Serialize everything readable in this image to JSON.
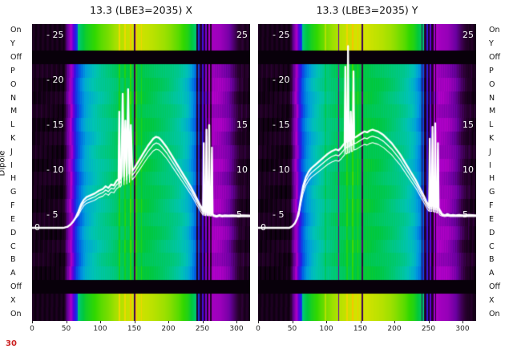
{
  "y_axis_title": "Dipole",
  "frame_counter": {
    "text": "30",
    "color": "#cc2222"
  },
  "dipole_labels": [
    "On",
    "Y",
    "Off",
    "P",
    "O",
    "N",
    "M",
    "L",
    "K",
    "J",
    "I",
    "H",
    "G",
    "F",
    "E",
    "D",
    "C",
    "B",
    "A",
    "Off",
    "X",
    "On"
  ],
  "overlay_y_ticks": [
    {
      "v": 25,
      "label": "- 25"
    },
    {
      "v": 20,
      "label": "- 20"
    },
    {
      "v": 15,
      "label": "- 15"
    },
    {
      "v": 10,
      "label": "- 10"
    },
    {
      "v": 5,
      "label": "- 5"
    },
    {
      "v": 0,
      "label": "0"
    }
  ],
  "mirror_y_ticks": [
    {
      "v": 25,
      "label": "25"
    },
    {
      "v": 15,
      "label": "15"
    },
    {
      "v": 10,
      "label": "10"
    },
    {
      "v": 5,
      "label": "5"
    }
  ],
  "x_ticks": [
    {
      "v": 0,
      "label": "0"
    },
    {
      "v": 50,
      "label": "50"
    },
    {
      "v": 100,
      "label": "100"
    },
    {
      "v": 150,
      "label": "150"
    },
    {
      "v": 200,
      "label": "200"
    },
    {
      "v": 250,
      "label": "250"
    },
    {
      "v": 300,
      "label": "300"
    }
  ],
  "colormap": [
    [
      0.0,
      "#000000"
    ],
    [
      0.06,
      "#2a0030"
    ],
    [
      0.12,
      "#6a00a0"
    ],
    [
      0.17,
      "#b400c8"
    ],
    [
      0.22,
      "#5a00dc"
    ],
    [
      0.27,
      "#2222e4"
    ],
    [
      0.32,
      "#0064e4"
    ],
    [
      0.37,
      "#00a0dc"
    ],
    [
      0.42,
      "#00c4b4"
    ],
    [
      0.47,
      "#00c87a"
    ],
    [
      0.52,
      "#00c83e"
    ],
    [
      0.58,
      "#32d800"
    ],
    [
      0.64,
      "#a0e000"
    ],
    [
      0.7,
      "#e8e400"
    ],
    [
      0.76,
      "#ffb400"
    ],
    [
      0.82,
      "#ff5000"
    ],
    [
      0.88,
      "#e00000"
    ],
    [
      1.0,
      "#ffffff"
    ]
  ],
  "chart_data": [
    {
      "type": "heatmap",
      "title": "13.3 (LBE3=2035) X",
      "x_range": [
        0,
        320
      ],
      "x_tick_values": [
        0,
        50,
        100,
        150,
        200,
        250,
        300
      ],
      "y_overlay_tick_values": [
        0,
        5,
        10,
        15,
        20,
        25
      ],
      "rows": [
        "On",
        "Y",
        "Off",
        "P",
        "O",
        "N",
        "M",
        "L",
        "K",
        "J",
        "I",
        "H",
        "G",
        "F",
        "E",
        "D",
        "C",
        "B",
        "A",
        "Off",
        "X",
        "On"
      ],
      "off_rows": [
        2,
        19
      ],
      "bright_rows": [
        0,
        1,
        20,
        21
      ],
      "palette": "spectral-like",
      "value_profile": [
        [
          0,
          0.02
        ],
        [
          46,
          0.02
        ],
        [
          50,
          0.1
        ],
        [
          56,
          0.16
        ],
        [
          60,
          0.22
        ],
        [
          64,
          0.28
        ],
        [
          70,
          0.33
        ],
        [
          78,
          0.38
        ],
        [
          88,
          0.41
        ],
        [
          100,
          0.44
        ],
        [
          112,
          0.46
        ],
        [
          125,
          0.49
        ],
        [
          140,
          0.51
        ],
        [
          155,
          0.52
        ],
        [
          170,
          0.51
        ],
        [
          185,
          0.49
        ],
        [
          200,
          0.47
        ],
        [
          215,
          0.44
        ],
        [
          228,
          0.4
        ],
        [
          238,
          0.33
        ],
        [
          246,
          0.27
        ],
        [
          252,
          0.22
        ],
        [
          258,
          0.18
        ],
        [
          263,
          0.16
        ],
        [
          275,
          0.155
        ],
        [
          288,
          0.13
        ],
        [
          296,
          0.09
        ],
        [
          304,
          0.05
        ],
        [
          312,
          0.03
        ],
        [
          330,
          0.02
        ]
      ],
      "dark_stripes": [
        [
          150,
          2,
          0.08
        ],
        [
          242,
          2,
          0.05
        ],
        [
          247,
          3,
          0.04
        ],
        [
          252,
          2,
          0.06
        ],
        [
          257,
          3,
          0.04
        ],
        [
          262,
          2,
          0.05
        ]
      ],
      "bright_stripes": [
        [
          128,
          2,
          0.06
        ],
        [
          136,
          2,
          0.05
        ],
        [
          144,
          2,
          0.07
        ],
        [
          152,
          2,
          0.05
        ],
        [
          160,
          2,
          0.04
        ]
      ],
      "line_series": {
        "name": "white-trace-x",
        "color": "#ffffff",
        "points": [
          [
            0,
            0
          ],
          [
            46,
            0
          ],
          [
            52,
            0.4
          ],
          [
            56,
            1.2
          ],
          [
            60,
            2.4
          ],
          [
            64,
            4.0
          ],
          [
            68,
            5.4
          ],
          [
            72,
            6.2
          ],
          [
            76,
            6.7
          ],
          [
            80,
            7.0
          ],
          [
            86,
            7.2
          ],
          [
            92,
            7.4
          ],
          [
            98,
            7.7
          ],
          [
            104,
            7.9
          ],
          [
            108,
            8.2
          ],
          [
            112,
            8.0
          ],
          [
            116,
            8.4
          ],
          [
            120,
            8.3
          ],
          [
            124,
            8.8
          ],
          [
            127,
            9.0
          ],
          [
            128,
            16.5
          ],
          [
            129,
            9.0
          ],
          [
            131,
            9.2
          ],
          [
            133,
            18.5
          ],
          [
            135,
            9.3
          ],
          [
            137,
            15.5
          ],
          [
            139,
            9.4
          ],
          [
            141,
            19.0
          ],
          [
            143,
            9.6
          ],
          [
            145,
            15.0
          ],
          [
            147,
            9.9
          ],
          [
            150,
            10.2
          ],
          [
            154,
            10.7
          ],
          [
            158,
            11.2
          ],
          [
            162,
            11.7
          ],
          [
            166,
            12.2
          ],
          [
            170,
            12.7
          ],
          [
            174,
            13.1
          ],
          [
            178,
            13.5
          ],
          [
            182,
            13.7
          ],
          [
            186,
            13.6
          ],
          [
            190,
            13.3
          ],
          [
            194,
            12.9
          ],
          [
            198,
            12.5
          ],
          [
            202,
            12.0
          ],
          [
            206,
            11.5
          ],
          [
            210,
            11.0
          ],
          [
            214,
            10.5
          ],
          [
            218,
            10.0
          ],
          [
            222,
            9.5
          ],
          [
            226,
            9.0
          ],
          [
            230,
            8.5
          ],
          [
            234,
            8.0
          ],
          [
            238,
            7.4
          ],
          [
            242,
            6.8
          ],
          [
            246,
            6.2
          ],
          [
            249,
            5.8
          ],
          [
            251,
            5.5
          ],
          [
            252,
            13.0
          ],
          [
            253,
            5.4
          ],
          [
            255,
            5.3
          ],
          [
            256,
            14.5
          ],
          [
            257,
            5.3
          ],
          [
            259,
            5.2
          ],
          [
            260,
            15.0
          ],
          [
            261,
            5.2
          ],
          [
            263,
            5.1
          ],
          [
            264,
            12.5
          ],
          [
            265,
            5.1
          ],
          [
            267,
            4.9
          ],
          [
            271,
            4.6
          ],
          [
            275,
            5.0
          ],
          [
            279,
            4.7
          ],
          [
            283,
            4.9
          ],
          [
            288,
            4.8
          ],
          [
            294,
            4.9
          ],
          [
            300,
            4.8
          ],
          [
            310,
            4.9
          ],
          [
            320,
            4.8
          ],
          [
            330,
            4.8
          ]
        ]
      }
    },
    {
      "type": "heatmap",
      "title": "13.3 (LBE3=2035) Y",
      "x_range": [
        0,
        320
      ],
      "x_tick_values": [
        0,
        50,
        100,
        150,
        200,
        250,
        300
      ],
      "y_overlay_tick_values": [
        0,
        5,
        10,
        15,
        20,
        25
      ],
      "rows": [
        "On",
        "Y",
        "Off",
        "P",
        "O",
        "N",
        "M",
        "L",
        "K",
        "J",
        "I",
        "H",
        "G",
        "F",
        "E",
        "D",
        "C",
        "B",
        "A",
        "Off",
        "X",
        "On"
      ],
      "off_rows": [
        2,
        19
      ],
      "bright_rows": [
        0,
        1,
        20,
        21
      ],
      "palette": "spectral-like",
      "value_profile": [
        [
          0,
          0.02
        ],
        [
          46,
          0.02
        ],
        [
          50,
          0.1
        ],
        [
          56,
          0.17
        ],
        [
          60,
          0.24
        ],
        [
          64,
          0.3
        ],
        [
          70,
          0.35
        ],
        [
          80,
          0.4
        ],
        [
          92,
          0.44
        ],
        [
          105,
          0.47
        ],
        [
          120,
          0.5
        ],
        [
          140,
          0.52
        ],
        [
          160,
          0.52
        ],
        [
          180,
          0.5
        ],
        [
          200,
          0.47
        ],
        [
          215,
          0.44
        ],
        [
          228,
          0.4
        ],
        [
          238,
          0.34
        ],
        [
          246,
          0.27
        ],
        [
          252,
          0.22
        ],
        [
          258,
          0.18
        ],
        [
          264,
          0.16
        ],
        [
          278,
          0.15
        ],
        [
          290,
          0.12
        ],
        [
          298,
          0.08
        ],
        [
          306,
          0.05
        ],
        [
          312,
          0.03
        ],
        [
          330,
          0.02
        ]
      ],
      "dark_stripes": [
        [
          118,
          1.5,
          0.12
        ],
        [
          152,
          2,
          0.08
        ],
        [
          240,
          2,
          0.06
        ],
        [
          245,
          3,
          0.04
        ],
        [
          250,
          2,
          0.05
        ],
        [
          255,
          3,
          0.04
        ],
        [
          260,
          2,
          0.05
        ]
      ],
      "bright_stripes": [
        [
          98,
          2,
          0.04
        ],
        [
          130,
          2,
          0.05
        ],
        [
          138,
          2,
          0.06
        ],
        [
          146,
          2,
          0.05
        ]
      ],
      "line_series": {
        "name": "white-trace-y",
        "color": "#ffffff",
        "points": [
          [
            0,
            0
          ],
          [
            46,
            0
          ],
          [
            50,
            0.6
          ],
          [
            54,
            1.8
          ],
          [
            57,
            3.5
          ],
          [
            60,
            5.5
          ],
          [
            63,
            7.0
          ],
          [
            66,
            8.2
          ],
          [
            70,
            9.2
          ],
          [
            74,
            9.8
          ],
          [
            78,
            10.2
          ],
          [
            84,
            10.6
          ],
          [
            90,
            11.0
          ],
          [
            96,
            11.4
          ],
          [
            102,
            11.8
          ],
          [
            108,
            12.1
          ],
          [
            114,
            12.3
          ],
          [
            118,
            12.2
          ],
          [
            122,
            12.5
          ],
          [
            125,
            12.8
          ],
          [
            127,
            13.0
          ],
          [
            128,
            21.5
          ],
          [
            129,
            13.1
          ],
          [
            131,
            13.2
          ],
          [
            132,
            23.8
          ],
          [
            133,
            13.2
          ],
          [
            135,
            13.4
          ],
          [
            136,
            16.5
          ],
          [
            137,
            13.4
          ],
          [
            139,
            13.5
          ],
          [
            140,
            21.0
          ],
          [
            141,
            13.6
          ],
          [
            144,
            13.7
          ],
          [
            148,
            13.9
          ],
          [
            152,
            14.1
          ],
          [
            156,
            14.3
          ],
          [
            160,
            14.2
          ],
          [
            164,
            14.4
          ],
          [
            168,
            14.5
          ],
          [
            172,
            14.4
          ],
          [
            176,
            14.3
          ],
          [
            180,
            14.1
          ],
          [
            184,
            13.9
          ],
          [
            188,
            13.6
          ],
          [
            192,
            13.3
          ],
          [
            196,
            13.0
          ],
          [
            200,
            12.6
          ],
          [
            204,
            12.2
          ],
          [
            208,
            11.8
          ],
          [
            212,
            11.3
          ],
          [
            216,
            10.8
          ],
          [
            220,
            10.3
          ],
          [
            224,
            9.8
          ],
          [
            228,
            9.3
          ],
          [
            232,
            8.8
          ],
          [
            236,
            8.2
          ],
          [
            240,
            7.6
          ],
          [
            244,
            7.0
          ],
          [
            247,
            6.5
          ],
          [
            250,
            6.1
          ],
          [
            251,
            6.0
          ],
          [
            252,
            13.5
          ],
          [
            253,
            6.0
          ],
          [
            255,
            6.0
          ],
          [
            256,
            14.8
          ],
          [
            257,
            6.0
          ],
          [
            259,
            5.9
          ],
          [
            260,
            15.2
          ],
          [
            261,
            5.9
          ],
          [
            263,
            5.8
          ],
          [
            264,
            13.0
          ],
          [
            265,
            5.8
          ],
          [
            267,
            5.5
          ],
          [
            270,
            5.1
          ],
          [
            274,
            4.9
          ],
          [
            278,
            5.1
          ],
          [
            282,
            4.9
          ],
          [
            286,
            5.0
          ],
          [
            290,
            4.9
          ],
          [
            295,
            5.0
          ],
          [
            300,
            4.9
          ],
          [
            310,
            5.0
          ],
          [
            320,
            4.9
          ],
          [
            330,
            5.0
          ]
        ]
      }
    }
  ]
}
